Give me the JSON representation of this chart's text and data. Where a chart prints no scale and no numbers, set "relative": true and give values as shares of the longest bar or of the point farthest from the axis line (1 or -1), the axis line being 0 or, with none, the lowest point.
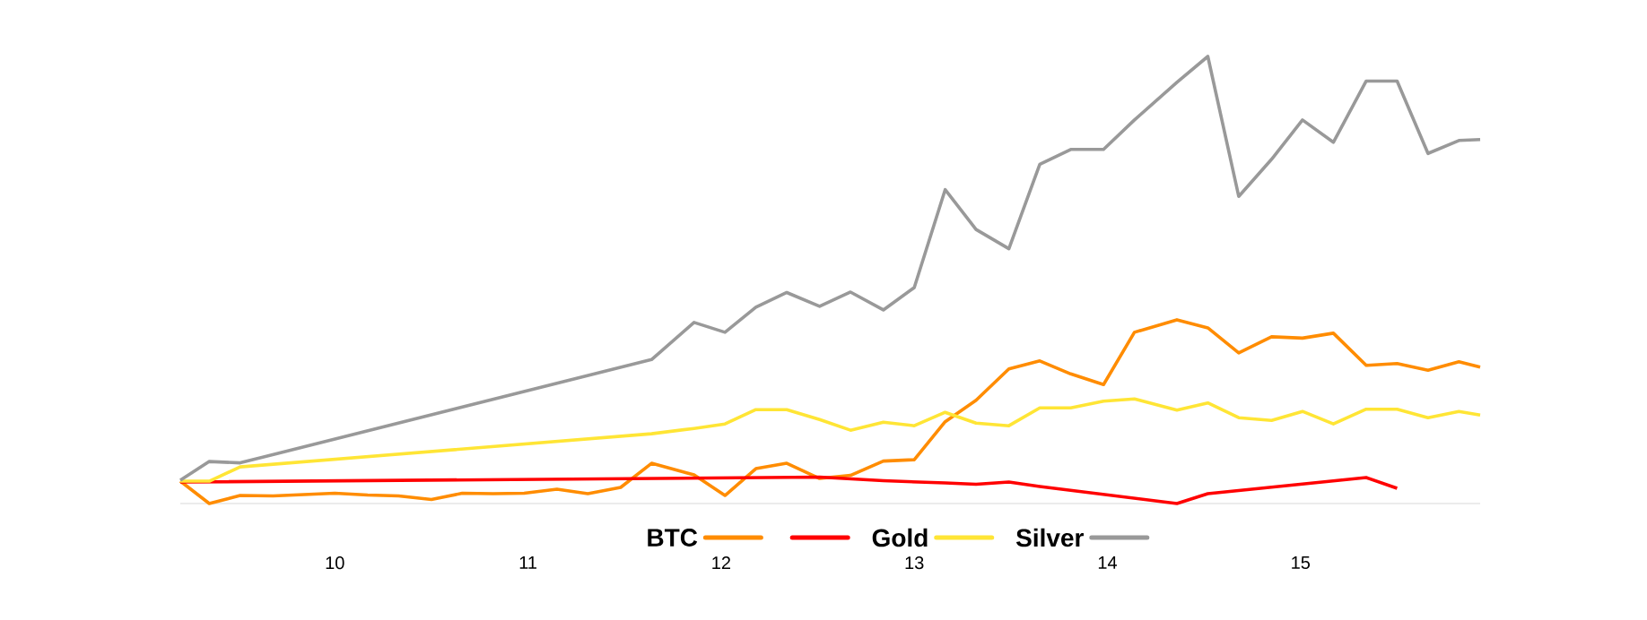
{
  "chart_data": {
    "type": "line",
    "relative": true,
    "xlim": [
      9.2,
      15.93
    ],
    "xticks": [
      10,
      11,
      12,
      13,
      14,
      15
    ],
    "legend": "bottom",
    "series": [
      {
        "name": "BTC",
        "color": "#ff8c00",
        "x": [
          9.2,
          9.35,
          9.51,
          9.68,
          9.84,
          10.0,
          10.17,
          10.33,
          10.5,
          10.66,
          10.82,
          10.98,
          11.15,
          11.31,
          11.48,
          11.64,
          11.86,
          12.02,
          12.18,
          12.34,
          12.51,
          12.67,
          12.84,
          13.0,
          13.16,
          13.32,
          13.49,
          13.65,
          13.81,
          13.98,
          14.14,
          14.36,
          14.52,
          14.68,
          14.85,
          15.01,
          15.17,
          15.34,
          15.5,
          15.66,
          15.82,
          15.93
        ],
        "values": [
          0.05,
          0.0,
          0.018,
          0.017,
          0.02,
          0.023,
          0.019,
          0.017,
          0.009,
          0.023,
          0.022,
          0.023,
          0.032,
          0.022,
          0.036,
          0.09,
          0.064,
          0.018,
          0.078,
          0.09,
          0.056,
          0.063,
          0.095,
          0.098,
          0.183,
          0.231,
          0.301,
          0.319,
          0.29,
          0.266,
          0.383,
          0.411,
          0.393,
          0.337,
          0.373,
          0.37,
          0.381,
          0.309,
          0.313,
          0.298,
          0.317,
          0.305
        ]
      },
      {
        "color": "#ff0000",
        "x": [
          9.2,
          12.51,
          12.84,
          13.16,
          13.32,
          13.49,
          13.65,
          14.36,
          14.52,
          15.34,
          15.5
        ],
        "values": [
          0.048,
          0.059,
          0.051,
          0.046,
          0.043,
          0.048,
          0.038,
          0.0,
          0.022,
          0.058,
          0.034
        ]
      },
      {
        "name": "Gold",
        "color": "#ffe535",
        "x": [
          9.2,
          9.35,
          9.51,
          11.64,
          11.86,
          12.02,
          12.18,
          12.34,
          12.51,
          12.67,
          12.84,
          13.0,
          13.16,
          13.32,
          13.49,
          13.65,
          13.81,
          13.98,
          14.14,
          14.36,
          14.52,
          14.68,
          14.85,
          15.01,
          15.17,
          15.34,
          15.5,
          15.66,
          15.82,
          15.93
        ],
        "values": [
          0.05,
          0.05,
          0.082,
          0.156,
          0.168,
          0.178,
          0.21,
          0.21,
          0.188,
          0.164,
          0.182,
          0.174,
          0.204,
          0.18,
          0.174,
          0.214,
          0.214,
          0.229,
          0.234,
          0.209,
          0.225,
          0.192,
          0.186,
          0.206,
          0.178,
          0.211,
          0.211,
          0.192,
          0.206,
          0.198
        ]
      },
      {
        "name": "Silver",
        "color": "#999999",
        "x": [
          9.2,
          9.35,
          9.51,
          11.64,
          11.86,
          12.02,
          12.18,
          12.34,
          12.51,
          12.67,
          12.84,
          13.0,
          13.16,
          13.32,
          13.49,
          13.65,
          13.81,
          13.98,
          14.14,
          14.36,
          14.52,
          14.68,
          14.85,
          15.01,
          15.17,
          15.34,
          15.5,
          15.66,
          15.82,
          15.93
        ],
        "values": [
          0.052,
          0.094,
          0.091,
          0.322,
          0.405,
          0.383,
          0.439,
          0.472,
          0.441,
          0.473,
          0.433,
          0.483,
          0.702,
          0.613,
          0.57,
          0.759,
          0.792,
          0.792,
          0.858,
          0.942,
          1.0,
          0.687,
          0.77,
          0.858,
          0.808,
          0.945,
          0.945,
          0.783,
          0.812,
          0.814
        ]
      }
    ]
  }
}
